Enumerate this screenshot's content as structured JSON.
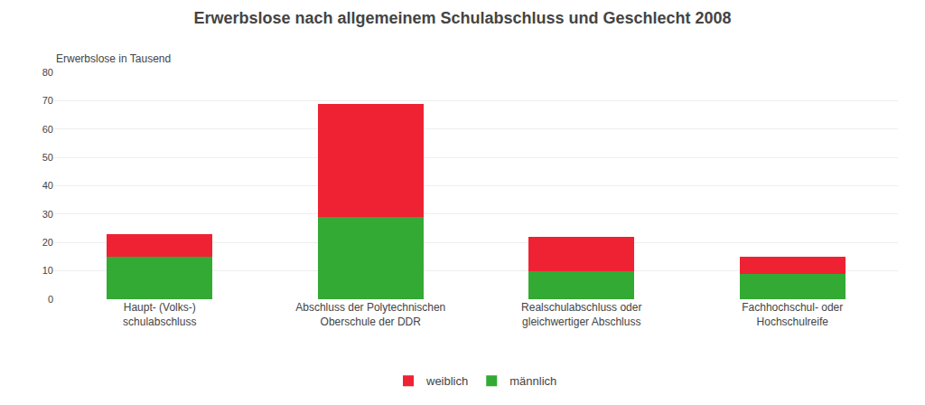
{
  "chart_data": {
    "type": "bar",
    "stacked": true,
    "title": "Erwerbslose nach allgemeinem Schulabschluss und Geschlecht 2008",
    "ylabel": "Erwerbslose in Tausend",
    "categories": [
      "Haupt- (Volks-)\nschulabschluss",
      "Abschluss der Polytechnischen\nOberschule der DDR",
      "Realschulabschluss oder\ngleichwertiger Abschluss",
      "Fachhochschul- oder\nHochschulreife"
    ],
    "series": [
      {
        "name": "männlich",
        "color": "#33aa33",
        "values": [
          15,
          29,
          10,
          9
        ]
      },
      {
        "name": "weiblich",
        "color": "#ee2233",
        "values": [
          8,
          40,
          12,
          6
        ]
      }
    ],
    "ylim": [
      0,
      80
    ],
    "yticks": [
      0,
      10,
      20,
      30,
      40,
      50,
      60,
      70,
      80
    ],
    "grid": true,
    "legend": "bottom"
  }
}
